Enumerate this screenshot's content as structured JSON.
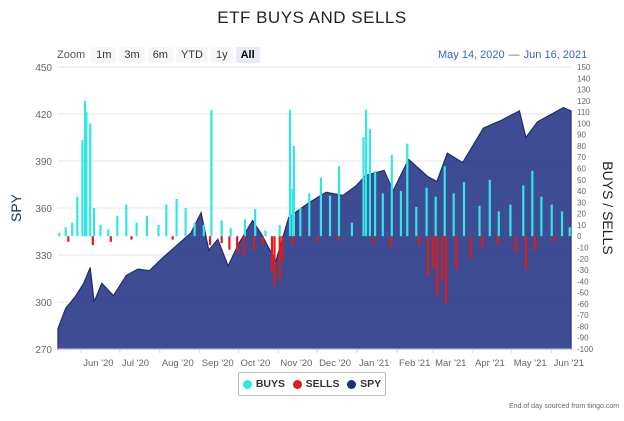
{
  "title": "ETF BUYS AND SELLS",
  "range_selector": {
    "label": "Zoom",
    "buttons": [
      "1m",
      "3m",
      "6m",
      "YTD",
      "1y",
      "All"
    ],
    "active": "All"
  },
  "date_range": {
    "from": "May 14, 2020",
    "to": "Jun 16, 2021"
  },
  "legend": [
    {
      "name": "BUYS",
      "color": "#33e6e6"
    },
    {
      "name": "SELLS",
      "color": "#e01b1b"
    },
    {
      "name": "SPY",
      "color": "#1a2e7a"
    }
  ],
  "credit": "End of day sourced from tiingo.com",
  "chart_data": {
    "type": "area",
    "left_axis": {
      "title": "SPY",
      "min": 270,
      "max": 450,
      "ticks": [
        270,
        300,
        330,
        360,
        390,
        420,
        450
      ]
    },
    "right_axis": {
      "title": "BUYS / SELLS",
      "min": -100,
      "max": 150,
      "ticks": [
        -100,
        -90,
        -80,
        -70,
        -60,
        -50,
        -40,
        -30,
        -20,
        -10,
        0,
        10,
        20,
        30,
        40,
        50,
        60,
        70,
        80,
        90,
        100,
        110,
        120,
        130,
        140,
        150
      ]
    },
    "x_axis": {
      "start": "2020-05-14",
      "end": "2021-06-16",
      "ticks": [
        "Jun '20",
        "Jul '20",
        "Aug '20",
        "Sep '20",
        "Oct '20",
        "Nov '20",
        "Dec '20",
        "Jan '21",
        "Feb '21",
        "Mar '21",
        "Apr '21",
        "May '21",
        "Jun '21"
      ]
    },
    "spy": [
      [
        "2020-05-14",
        283
      ],
      [
        "2020-05-20",
        296
      ],
      [
        "2020-05-27",
        303
      ],
      [
        "2020-06-03",
        312
      ],
      [
        "2020-06-08",
        322
      ],
      [
        "2020-06-11",
        300
      ],
      [
        "2020-06-17",
        312
      ],
      [
        "2020-06-26",
        304
      ],
      [
        "2020-07-06",
        317
      ],
      [
        "2020-07-15",
        321
      ],
      [
        "2020-07-24",
        320
      ],
      [
        "2020-08-03",
        328
      ],
      [
        "2020-08-14",
        336
      ],
      [
        "2020-08-25",
        344
      ],
      [
        "2020-09-02",
        357
      ],
      [
        "2020-09-08",
        333
      ],
      [
        "2020-09-15",
        340
      ],
      [
        "2020-09-23",
        323
      ],
      [
        "2020-10-01",
        337
      ],
      [
        "2020-10-12",
        352
      ],
      [
        "2020-10-19",
        343
      ],
      [
        "2020-10-30",
        326
      ],
      [
        "2020-11-09",
        354
      ],
      [
        "2020-11-24",
        363
      ],
      [
        "2020-12-08",
        370
      ],
      [
        "2020-12-21",
        368
      ],
      [
        "2020-12-31",
        374
      ],
      [
        "2021-01-08",
        381
      ],
      [
        "2021-01-22",
        384
      ],
      [
        "2021-01-29",
        371
      ],
      [
        "2021-02-10",
        391
      ],
      [
        "2021-02-25",
        380
      ],
      [
        "2021-03-04",
        377
      ],
      [
        "2021-03-12",
        395
      ],
      [
        "2021-03-24",
        389
      ],
      [
        "2021-04-09",
        411
      ],
      [
        "2021-04-23",
        416
      ],
      [
        "2021-05-07",
        422
      ],
      [
        "2021-05-12",
        405
      ],
      [
        "2021-05-21",
        415
      ],
      [
        "2021-06-01",
        420
      ],
      [
        "2021-06-10",
        424
      ],
      [
        "2021-06-16",
        422
      ]
    ],
    "buys": [
      [
        "2020-05-15",
        3
      ],
      [
        "2020-05-20",
        8
      ],
      [
        "2020-05-25",
        12
      ],
      [
        "2020-05-29",
        35
      ],
      [
        "2020-06-02",
        85
      ],
      [
        "2020-06-04",
        120
      ],
      [
        "2020-06-05",
        110
      ],
      [
        "2020-06-08",
        100
      ],
      [
        "2020-06-11",
        25
      ],
      [
        "2020-06-16",
        10
      ],
      [
        "2020-06-22",
        6
      ],
      [
        "2020-06-29",
        18
      ],
      [
        "2020-07-06",
        28
      ],
      [
        "2020-07-14",
        12
      ],
      [
        "2020-07-22",
        18
      ],
      [
        "2020-07-31",
        10
      ],
      [
        "2020-08-06",
        28
      ],
      [
        "2020-08-14",
        33
      ],
      [
        "2020-08-21",
        25
      ],
      [
        "2020-08-28",
        12
      ],
      [
        "2020-09-04",
        10
      ],
      [
        "2020-09-10",
        112
      ],
      [
        "2020-09-18",
        14
      ],
      [
        "2020-09-25",
        7
      ],
      [
        "2020-10-06",
        15
      ],
      [
        "2020-10-14",
        24
      ],
      [
        "2020-10-22",
        5
      ],
      [
        "2020-11-02",
        10
      ],
      [
        "2020-11-10",
        112
      ],
      [
        "2020-11-12",
        42
      ],
      [
        "2020-11-13",
        80
      ],
      [
        "2020-11-18",
        25
      ],
      [
        "2020-11-25",
        38
      ],
      [
        "2020-12-04",
        52
      ],
      [
        "2020-12-11",
        36
      ],
      [
        "2020-12-18",
        62
      ],
      [
        "2020-12-28",
        12
      ],
      [
        "2021-01-06",
        88
      ],
      [
        "2021-01-08",
        112
      ],
      [
        "2021-01-11",
        95
      ],
      [
        "2021-01-15",
        58
      ],
      [
        "2021-01-21",
        38
      ],
      [
        "2021-01-28",
        72
      ],
      [
        "2021-02-04",
        40
      ],
      [
        "2021-02-09",
        82
      ],
      [
        "2021-02-16",
        26
      ],
      [
        "2021-02-24",
        43
      ],
      [
        "2021-03-03",
        35
      ],
      [
        "2021-03-10",
        62
      ],
      [
        "2021-03-17",
        38
      ],
      [
        "2021-03-25",
        48
      ],
      [
        "2021-04-06",
        27
      ],
      [
        "2021-04-14",
        50
      ],
      [
        "2021-04-21",
        22
      ],
      [
        "2021-04-30",
        28
      ],
      [
        "2021-05-10",
        45
      ],
      [
        "2021-05-17",
        58
      ],
      [
        "2021-05-24",
        35
      ],
      [
        "2021-06-01",
        28
      ],
      [
        "2021-06-09",
        22
      ],
      [
        "2021-06-15",
        8
      ]
    ],
    "sells": [
      [
        "2020-05-22",
        -5
      ],
      [
        "2020-06-10",
        -8
      ],
      [
        "2020-06-24",
        -5
      ],
      [
        "2020-07-10",
        -3
      ],
      [
        "2020-08-11",
        -3
      ],
      [
        "2020-09-09",
        -8
      ],
      [
        "2020-09-18",
        -6
      ],
      [
        "2020-09-24",
        -12
      ],
      [
        "2020-09-30",
        -15
      ],
      [
        "2020-10-05",
        -18
      ],
      [
        "2020-10-13",
        -12
      ],
      [
        "2020-10-20",
        -8
      ],
      [
        "2020-10-27",
        -32
      ],
      [
        "2020-10-29",
        -44
      ],
      [
        "2020-11-02",
        -38
      ],
      [
        "2020-11-04",
        -22
      ],
      [
        "2020-11-12",
        -8
      ],
      [
        "2020-12-01",
        -5
      ],
      [
        "2020-12-17",
        -4
      ],
      [
        "2021-01-14",
        -6
      ],
      [
        "2021-01-27",
        -10
      ],
      [
        "2021-02-18",
        -8
      ],
      [
        "2021-02-25",
        -35
      ],
      [
        "2021-03-01",
        -28
      ],
      [
        "2021-03-04",
        -52
      ],
      [
        "2021-03-08",
        -40
      ],
      [
        "2021-03-11",
        -60
      ],
      [
        "2021-03-19",
        -30
      ],
      [
        "2021-03-30",
        -20
      ],
      [
        "2021-04-08",
        -10
      ],
      [
        "2021-04-20",
        -8
      ],
      [
        "2021-05-04",
        -15
      ],
      [
        "2021-05-12",
        -30
      ],
      [
        "2021-05-19",
        -12
      ],
      [
        "2021-06-03",
        -5
      ]
    ]
  }
}
